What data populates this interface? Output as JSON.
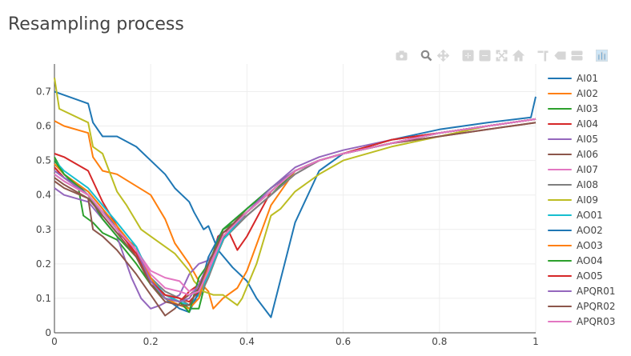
{
  "title": "Resampling process",
  "modebar": [
    {
      "icon": "camera-icon",
      "name": "download-plot-button"
    },
    {
      "icon": "zoom-icon",
      "name": "zoom-button",
      "active": true
    },
    {
      "icon": "pan-icon",
      "name": "pan-button"
    },
    {
      "icon": "zoom-in-icon",
      "name": "zoom-in-button"
    },
    {
      "icon": "zoom-out-icon",
      "name": "zoom-out-button"
    },
    {
      "icon": "autoscale-icon",
      "name": "autoscale-button"
    },
    {
      "icon": "home-icon",
      "name": "reset-axes-button"
    },
    {
      "icon": "spike-lines-icon",
      "name": "spike-lines-button"
    },
    {
      "icon": "hover-closest-icon",
      "name": "hover-closest-button"
    },
    {
      "icon": "hover-compare-icon",
      "name": "hover-compare-button"
    },
    {
      "icon": "plotly-logo-icon",
      "name": "plotly-logo-button"
    }
  ],
  "chart_data": {
    "type": "line",
    "title": "Resampling process",
    "xlabel": "",
    "ylabel": "",
    "xlim": [
      0,
      1
    ],
    "ylim": [
      0,
      0.78
    ],
    "xticks": [
      0,
      0.2,
      0.4,
      0.6,
      0.8,
      1
    ],
    "yticks": [
      0,
      0.1,
      0.2,
      0.3,
      0.4,
      0.5,
      0.6,
      0.7
    ],
    "xtick_labels": [
      "0",
      "0.2",
      "0.4",
      "0.6",
      "0.8",
      "1"
    ],
    "ytick_labels": [
      "0",
      "0.1",
      "0.2",
      "0.3",
      "0.4",
      "0.5",
      "0.6",
      "0.7"
    ],
    "grid": true,
    "legend_position": "right",
    "series": [
      {
        "name": "AI01",
        "color": "#1f77b4",
        "x": [
          0,
          0.02,
          0.07,
          0.08,
          0.1,
          0.13,
          0.17,
          0.23,
          0.25,
          0.28,
          0.29,
          0.31,
          0.32,
          0.34,
          0.37,
          0.4,
          0.42,
          0.45,
          0.5,
          0.55,
          0.6,
          0.7,
          0.8,
          0.9,
          0.99,
          1
        ],
        "y": [
          0.7,
          0.69,
          0.665,
          0.61,
          0.57,
          0.57,
          0.54,
          0.46,
          0.42,
          0.38,
          0.35,
          0.3,
          0.31,
          0.24,
          0.19,
          0.15,
          0.1,
          0.045,
          0.32,
          0.47,
          0.52,
          0.56,
          0.59,
          0.61,
          0.625,
          0.685
        ]
      },
      {
        "name": "AI02",
        "color": "#ff7f0e",
        "x": [
          0,
          0.02,
          0.07,
          0.08,
          0.1,
          0.13,
          0.2,
          0.23,
          0.25,
          0.28,
          0.3,
          0.32,
          0.33,
          0.35,
          0.38,
          0.4,
          0.45,
          0.5,
          0.55,
          0.6,
          0.7,
          0.8,
          0.9,
          1
        ],
        "y": [
          0.615,
          0.6,
          0.58,
          0.51,
          0.47,
          0.46,
          0.4,
          0.33,
          0.26,
          0.2,
          0.15,
          0.12,
          0.07,
          0.1,
          0.13,
          0.18,
          0.37,
          0.47,
          0.5,
          0.52,
          0.55,
          0.58,
          0.6,
          0.62
        ]
      },
      {
        "name": "AI03",
        "color": "#2ca02c",
        "x": [
          0,
          0.02,
          0.05,
          0.06,
          0.08,
          0.1,
          0.13,
          0.17,
          0.2,
          0.23,
          0.26,
          0.28,
          0.3,
          0.32,
          0.35,
          0.4,
          0.45,
          0.5,
          0.55,
          0.6,
          0.7,
          0.8,
          0.9,
          1
        ],
        "y": [
          0.51,
          0.46,
          0.42,
          0.34,
          0.32,
          0.29,
          0.27,
          0.2,
          0.14,
          0.1,
          0.09,
          0.07,
          0.07,
          0.18,
          0.3,
          0.34,
          0.4,
          0.47,
          0.5,
          0.52,
          0.55,
          0.58,
          0.6,
          0.62
        ]
      },
      {
        "name": "AI04",
        "color": "#d62728",
        "x": [
          0,
          0.02,
          0.07,
          0.1,
          0.13,
          0.17,
          0.2,
          0.23,
          0.26,
          0.28,
          0.3,
          0.32,
          0.34,
          0.36,
          0.38,
          0.4,
          0.45,
          0.5,
          0.55,
          0.6,
          0.7,
          0.8,
          0.9,
          1
        ],
        "y": [
          0.52,
          0.51,
          0.47,
          0.38,
          0.31,
          0.22,
          0.14,
          0.11,
          0.09,
          0.12,
          0.14,
          0.18,
          0.28,
          0.3,
          0.24,
          0.28,
          0.41,
          0.47,
          0.5,
          0.52,
          0.56,
          0.58,
          0.6,
          0.62
        ]
      },
      {
        "name": "AI05",
        "color": "#9467bd",
        "x": [
          0,
          0.02,
          0.07,
          0.1,
          0.13,
          0.16,
          0.18,
          0.2,
          0.22,
          0.26,
          0.28,
          0.3,
          0.32,
          0.36,
          0.4,
          0.45,
          0.5,
          0.55,
          0.6,
          0.7,
          0.8,
          0.9,
          1
        ],
        "y": [
          0.42,
          0.4,
          0.38,
          0.33,
          0.28,
          0.16,
          0.1,
          0.07,
          0.08,
          0.11,
          0.17,
          0.2,
          0.21,
          0.29,
          0.35,
          0.42,
          0.48,
          0.51,
          0.53,
          0.56,
          0.58,
          0.6,
          0.62
        ]
      },
      {
        "name": "AI06",
        "color": "#8c564b",
        "x": [
          0,
          0.02,
          0.07,
          0.08,
          0.1,
          0.13,
          0.17,
          0.2,
          0.23,
          0.25,
          0.27,
          0.29,
          0.31,
          0.33,
          0.36,
          0.4,
          0.45,
          0.5,
          0.55,
          0.6,
          0.7,
          0.8,
          0.9,
          1
        ],
        "y": [
          0.44,
          0.42,
          0.39,
          0.3,
          0.28,
          0.24,
          0.17,
          0.11,
          0.05,
          0.07,
          0.1,
          0.12,
          0.14,
          0.2,
          0.3,
          0.36,
          0.42,
          0.47,
          0.5,
          0.52,
          0.55,
          0.57,
          0.59,
          0.61
        ]
      },
      {
        "name": "AI07",
        "color": "#e377c2",
        "x": [
          0,
          0.02,
          0.07,
          0.1,
          0.13,
          0.17,
          0.2,
          0.23,
          0.26,
          0.28,
          0.3,
          0.32,
          0.35,
          0.4,
          0.45,
          0.5,
          0.55,
          0.6,
          0.7,
          0.8,
          0.9,
          1
        ],
        "y": [
          0.47,
          0.45,
          0.41,
          0.36,
          0.3,
          0.24,
          0.18,
          0.16,
          0.15,
          0.12,
          0.13,
          0.19,
          0.28,
          0.34,
          0.4,
          0.46,
          0.5,
          0.52,
          0.55,
          0.58,
          0.6,
          0.62
        ]
      },
      {
        "name": "AI08",
        "color": "#7f7f7f",
        "x": [
          0,
          0.02,
          0.07,
          0.1,
          0.13,
          0.17,
          0.2,
          0.23,
          0.26,
          0.28,
          0.3,
          0.32,
          0.35,
          0.4,
          0.45,
          0.5,
          0.55,
          0.6,
          0.7,
          0.8,
          0.9,
          1
        ],
        "y": [
          0.46,
          0.44,
          0.4,
          0.34,
          0.29,
          0.25,
          0.16,
          0.12,
          0.1,
          0.08,
          0.1,
          0.16,
          0.27,
          0.34,
          0.4,
          0.46,
          0.5,
          0.52,
          0.55,
          0.58,
          0.6,
          0.62
        ]
      },
      {
        "name": "AI09",
        "color": "#bcbd22",
        "x": [
          0,
          0.01,
          0.07,
          0.08,
          0.1,
          0.13,
          0.15,
          0.18,
          0.2,
          0.25,
          0.28,
          0.29,
          0.31,
          0.33,
          0.35,
          0.37,
          0.38,
          0.39,
          0.42,
          0.45,
          0.47,
          0.5,
          0.55,
          0.6,
          0.7,
          0.8,
          0.9,
          1
        ],
        "y": [
          0.74,
          0.65,
          0.61,
          0.54,
          0.52,
          0.41,
          0.37,
          0.3,
          0.28,
          0.23,
          0.18,
          0.15,
          0.12,
          0.11,
          0.11,
          0.09,
          0.08,
          0.1,
          0.2,
          0.34,
          0.36,
          0.41,
          0.46,
          0.5,
          0.54,
          0.57,
          0.6,
          0.62
        ]
      },
      {
        "name": "AO01",
        "color": "#17becf",
        "x": [
          0,
          0.02,
          0.07,
          0.1,
          0.13,
          0.17,
          0.2,
          0.23,
          0.26,
          0.28,
          0.3,
          0.32,
          0.35,
          0.4,
          0.45,
          0.5,
          0.55,
          0.6,
          0.7,
          0.8,
          0.9,
          1
        ],
        "y": [
          0.5,
          0.47,
          0.42,
          0.37,
          0.32,
          0.25,
          0.16,
          0.11,
          0.09,
          0.08,
          0.11,
          0.17,
          0.27,
          0.35,
          0.41,
          0.47,
          0.5,
          0.52,
          0.55,
          0.58,
          0.6,
          0.62
        ]
      },
      {
        "name": "AO02",
        "color": "#1f77b4",
        "x": [
          0,
          0.02,
          0.07,
          0.1,
          0.13,
          0.17,
          0.2,
          0.23,
          0.26,
          0.28,
          0.3,
          0.32,
          0.35,
          0.4,
          0.45,
          0.5,
          0.55,
          0.6,
          0.7,
          0.8,
          0.9,
          1
        ],
        "y": [
          0.48,
          0.45,
          0.41,
          0.36,
          0.3,
          0.24,
          0.16,
          0.1,
          0.07,
          0.06,
          0.12,
          0.22,
          0.3,
          0.36,
          0.42,
          0.47,
          0.5,
          0.52,
          0.55,
          0.58,
          0.6,
          0.62
        ]
      },
      {
        "name": "AO03",
        "color": "#ff7f0e",
        "x": [
          0,
          0.02,
          0.07,
          0.1,
          0.13,
          0.17,
          0.2,
          0.23,
          0.26,
          0.28,
          0.3,
          0.32,
          0.35,
          0.4,
          0.45,
          0.5,
          0.55,
          0.6,
          0.7,
          0.8,
          0.9,
          1
        ],
        "y": [
          0.49,
          0.46,
          0.41,
          0.36,
          0.31,
          0.24,
          0.16,
          0.1,
          0.08,
          0.07,
          0.1,
          0.2,
          0.29,
          0.35,
          0.41,
          0.47,
          0.5,
          0.52,
          0.55,
          0.58,
          0.6,
          0.62
        ]
      },
      {
        "name": "AO04",
        "color": "#2ca02c",
        "x": [
          0,
          0.02,
          0.07,
          0.1,
          0.13,
          0.17,
          0.2,
          0.23,
          0.26,
          0.28,
          0.3,
          0.32,
          0.35,
          0.4,
          0.45,
          0.5,
          0.55,
          0.6,
          0.7,
          0.8,
          0.9,
          1
        ],
        "y": [
          0.5,
          0.46,
          0.4,
          0.33,
          0.28,
          0.22,
          0.14,
          0.1,
          0.09,
          0.06,
          0.16,
          0.2,
          0.3,
          0.36,
          0.42,
          0.47,
          0.5,
          0.52,
          0.55,
          0.58,
          0.6,
          0.62
        ]
      },
      {
        "name": "AO05",
        "color": "#d62728",
        "x": [
          0,
          0.02,
          0.07,
          0.1,
          0.13,
          0.17,
          0.2,
          0.23,
          0.26,
          0.28,
          0.3,
          0.32,
          0.35,
          0.4,
          0.45,
          0.5,
          0.55,
          0.6,
          0.7,
          0.8,
          0.9,
          1
        ],
        "y": [
          0.48,
          0.45,
          0.4,
          0.35,
          0.3,
          0.23,
          0.15,
          0.11,
          0.1,
          0.09,
          0.12,
          0.18,
          0.28,
          0.35,
          0.41,
          0.47,
          0.5,
          0.52,
          0.56,
          0.58,
          0.6,
          0.62
        ]
      },
      {
        "name": "APQR01",
        "color": "#9467bd",
        "x": [
          0,
          0.02,
          0.07,
          0.1,
          0.13,
          0.17,
          0.2,
          0.23,
          0.26,
          0.28,
          0.3,
          0.32,
          0.35,
          0.4,
          0.45,
          0.5,
          0.55,
          0.6,
          0.7,
          0.8,
          0.9,
          1
        ],
        "y": [
          0.47,
          0.45,
          0.4,
          0.35,
          0.3,
          0.24,
          0.15,
          0.1,
          0.09,
          0.1,
          0.14,
          0.2,
          0.29,
          0.35,
          0.42,
          0.47,
          0.5,
          0.52,
          0.55,
          0.58,
          0.6,
          0.62
        ]
      },
      {
        "name": "APQR02",
        "color": "#8c564b",
        "x": [
          0,
          0.02,
          0.07,
          0.1,
          0.13,
          0.17,
          0.2,
          0.23,
          0.26,
          0.28,
          0.3,
          0.32,
          0.35,
          0.4,
          0.45,
          0.5,
          0.55,
          0.6,
          0.7,
          0.8,
          0.9,
          1
        ],
        "y": [
          0.45,
          0.43,
          0.39,
          0.34,
          0.29,
          0.22,
          0.14,
          0.09,
          0.08,
          0.08,
          0.13,
          0.2,
          0.29,
          0.35,
          0.41,
          0.47,
          0.5,
          0.52,
          0.55,
          0.57,
          0.59,
          0.61
        ]
      },
      {
        "name": "APQR03",
        "color": "#e377c2",
        "x": [
          0,
          0.02,
          0.07,
          0.1,
          0.13,
          0.17,
          0.2,
          0.23,
          0.26,
          0.28,
          0.3,
          0.32,
          0.35,
          0.4,
          0.45,
          0.5,
          0.55,
          0.6,
          0.7,
          0.8,
          0.9,
          1
        ],
        "y": [
          0.46,
          0.44,
          0.4,
          0.35,
          0.3,
          0.24,
          0.17,
          0.13,
          0.12,
          0.11,
          0.12,
          0.18,
          0.28,
          0.35,
          0.41,
          0.47,
          0.5,
          0.52,
          0.55,
          0.58,
          0.6,
          0.62
        ]
      }
    ]
  }
}
